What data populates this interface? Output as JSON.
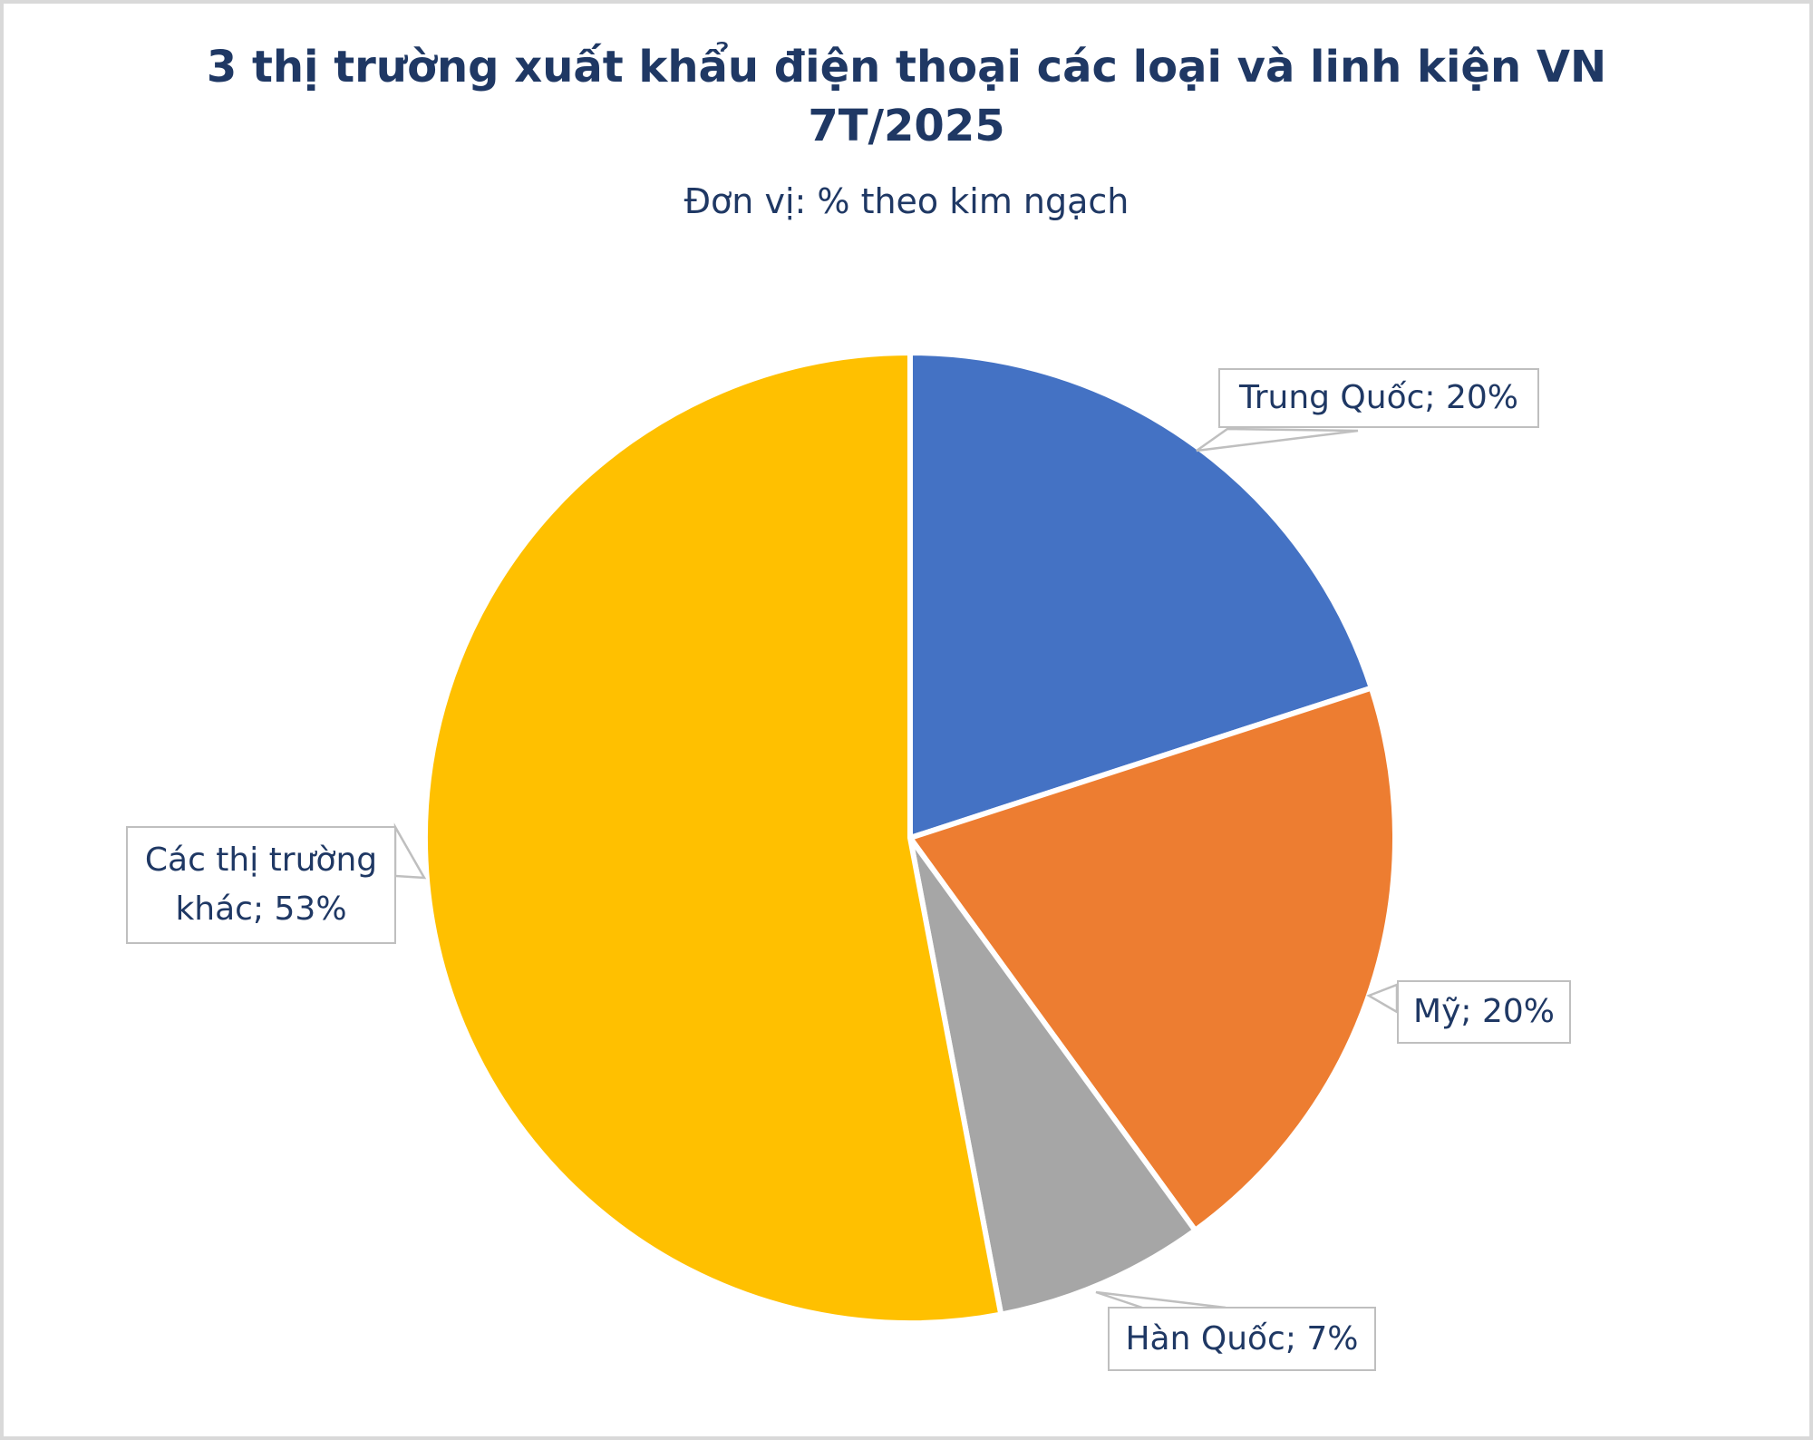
{
  "chart_data": {
    "type": "pie",
    "title_line1": "3 thị trường xuất khẩu điện thoại các loại và linh kiện VN",
    "title_line2": "7T/2025",
    "title_full": "3 thị trường xuất khẩu điện thoại các loại và linh kiện VN 7T/2025",
    "subtitle": "Đơn vị: % theo kim ngạch",
    "unit": "% theo kim ngạch",
    "start_angle_deg": 0,
    "direction": "clockwise",
    "legend": "none",
    "label_style": "callout-boxes",
    "slices": [
      {
        "label": "Trung Quốc",
        "value": 20,
        "color": "#4472C4",
        "data_label": "Trung Quốc; 20%"
      },
      {
        "label": "Mỹ",
        "value": 20,
        "color": "#ED7D31",
        "data_label": "Mỹ; 20%"
      },
      {
        "label": "Hàn Quốc",
        "value": 7,
        "color": "#A6A6A6",
        "data_label": "Hàn Quốc; 7%"
      },
      {
        "label": "Các thị trường khác",
        "value": 53,
        "color": "#FFC000",
        "data_label": "Các thị trường khác; 53%"
      }
    ]
  },
  "colors": {
    "title_text": "#1F3864",
    "label_text": "#1F3864",
    "label_border": "#BFBFBF",
    "leader_line": "#BFBFBF",
    "frame_border": "#D9D9D9",
    "background": "#FFFFFF"
  }
}
